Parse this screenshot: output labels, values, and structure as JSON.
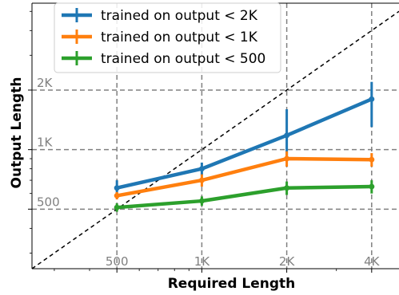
{
  "chart_data": {
    "type": "line",
    "title": "",
    "xlabel": "Required Length",
    "ylabel": "Output Length",
    "xscale": "log",
    "yscale": "log",
    "xlim": [
      250,
      5000
    ],
    "ylim": [
      250,
      5500
    ],
    "x_ticks": [
      {
        "value": 500,
        "label": "500"
      },
      {
        "value": 1000,
        "label": "1K"
      },
      {
        "value": 2000,
        "label": "2K"
      },
      {
        "value": 4000,
        "label": "4K"
      }
    ],
    "y_ticks": [
      {
        "value": 500,
        "label": "500"
      },
      {
        "value": 1000,
        "label": "1K"
      },
      {
        "value": 2000,
        "label": "2K"
      }
    ],
    "grid": "dashed at tick values",
    "reference_line": "y = x (dashed black diagonal)",
    "legend_position": "top-left",
    "series": [
      {
        "name": "trained on output < 2K",
        "color": "#1f77b4",
        "x": [
          500,
          1000,
          2000,
          4000
        ],
        "y": [
          640,
          800,
          1180,
          1800
        ],
        "y_err_low": [
          580,
          740,
          900,
          1300
        ],
        "y_err_high": [
          700,
          860,
          1600,
          2200
        ]
      },
      {
        "name": "trained on output < 1K",
        "color": "#ff7f0e",
        "x": [
          500,
          1000,
          2000,
          4000
        ],
        "y": [
          585,
          700,
          900,
          890
        ],
        "y_err_low": [
          560,
          650,
          820,
          820
        ],
        "y_err_high": [
          610,
          750,
          980,
          960
        ]
      },
      {
        "name": "trained on output < 500",
        "color": "#2ca02c",
        "x": [
          500,
          1000,
          2000,
          4000
        ],
        "y": [
          510,
          550,
          640,
          650
        ],
        "y_err_low": [
          485,
          520,
          590,
          600
        ],
        "y_err_high": [
          535,
          580,
          690,
          700
        ]
      }
    ]
  }
}
